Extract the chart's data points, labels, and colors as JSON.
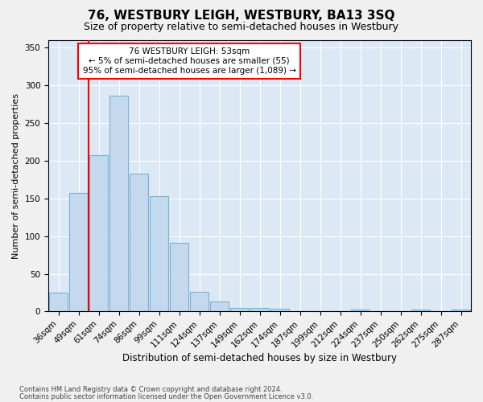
{
  "title": "76, WESTBURY LEIGH, WESTBURY, BA13 3SQ",
  "subtitle": "Size of property relative to semi-detached houses in Westbury",
  "xlabel": "Distribution of semi-detached houses by size in Westbury",
  "ylabel": "Number of semi-detached properties",
  "footnote1": "Contains HM Land Registry data © Crown copyright and database right 2024.",
  "footnote2": "Contains public sector information licensed under the Open Government Licence v3.0.",
  "annotation_title": "76 WESTBURY LEIGH: 53sqm",
  "annotation_line1": "← 5% of semi-detached houses are smaller (55)",
  "annotation_line2": "95% of semi-detached houses are larger (1,089) →",
  "bar_labels": [
    "36sqm",
    "49sqm",
    "61sqm",
    "74sqm",
    "86sqm",
    "99sqm",
    "111sqm",
    "124sqm",
    "137sqm",
    "149sqm",
    "162sqm",
    "174sqm",
    "187sqm",
    "199sqm",
    "212sqm",
    "224sqm",
    "237sqm",
    "250sqm",
    "262sqm",
    "275sqm",
    "287sqm"
  ],
  "bar_values": [
    25,
    157,
    207,
    286,
    183,
    153,
    91,
    26,
    13,
    5,
    5,
    4,
    0,
    0,
    0,
    3,
    0,
    0,
    3,
    0,
    3
  ],
  "bar_color": "#c5d9ee",
  "bar_edgecolor": "#7ab0d4",
  "red_line_x": 1.5,
  "ylim": [
    0,
    360
  ],
  "yticks": [
    0,
    50,
    100,
    150,
    200,
    250,
    300,
    350
  ],
  "bg_color": "#dce9f5",
  "fig_bg_color": "#f0f0f0"
}
